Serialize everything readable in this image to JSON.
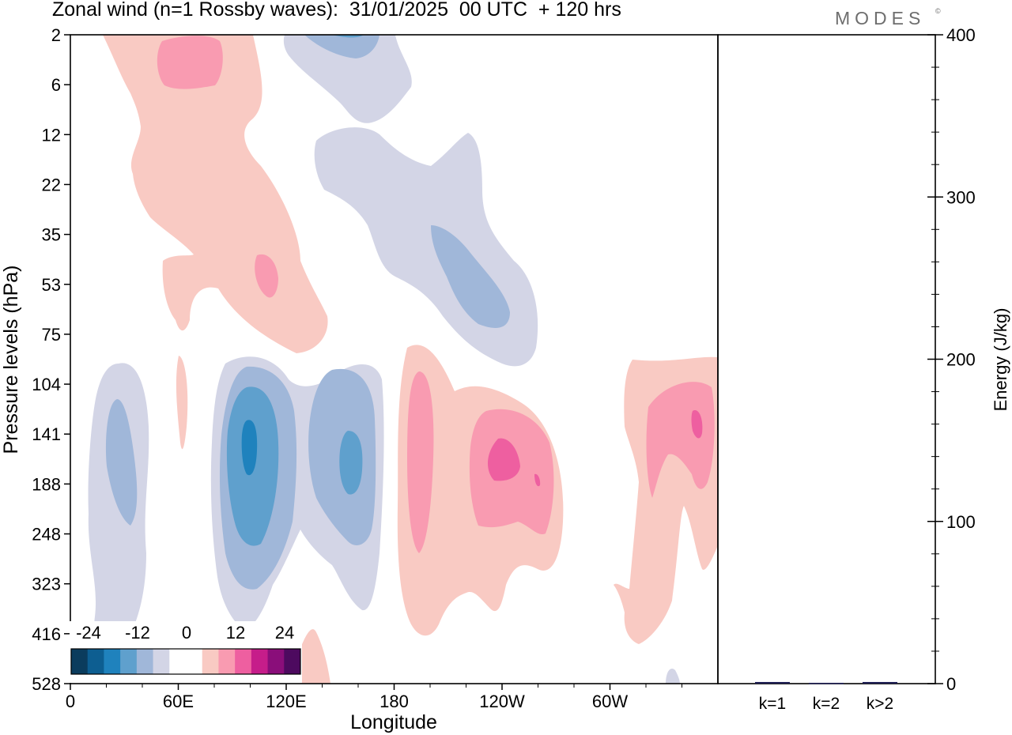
{
  "title": "Zonal wind (n=1 Rossby waves):  31/01/2025  00 UTC  + 120 hrs",
  "logo": {
    "text": "MODES",
    "mark": "©"
  },
  "chart_data": [
    {
      "type": "heatmap",
      "title": "Zonal wind (n=1 Rossby waves):  31/01/2025  00 UTC  + 120 hrs",
      "xlabel": "Longitude",
      "ylabel": "Pressure levels (hPa)",
      "x_ticks": [
        "0",
        "60E",
        "120E",
        "180",
        "120W",
        "60W"
      ],
      "x_range_deg": [
        0,
        360
      ],
      "y_ticks": [
        "2",
        "6",
        "12",
        "22",
        "35",
        "53",
        "75",
        "104",
        "141",
        "188",
        "248",
        "323",
        "416",
        "528"
      ],
      "y_range_hPa": [
        2,
        528
      ],
      "colorbar": {
        "tick_labels": [
          "-24",
          "-12",
          "0",
          "12",
          "24"
        ],
        "colors": [
          "#0b3c5d",
          "#0d5e91",
          "#1f82bd",
          "#5fa0cd",
          "#a0b7d9",
          "#d3d5e6",
          "#ffffff",
          "#ffffff",
          "#f9cac3",
          "#f99bb1",
          "#ee5fa0",
          "#c61d8a",
          "#8a0e7a",
          "#4d0a5f"
        ]
      },
      "features": [
        {
          "sign": "positive",
          "max": 12,
          "longitude_approx": "30E-120E",
          "pressure_approx": "2-75 hPa"
        },
        {
          "sign": "negative",
          "min": -6,
          "longitude_approx": "120E-170W",
          "pressure_approx": "2-104 hPa"
        },
        {
          "sign": "negative",
          "min": -18,
          "longitude_approx": "100E",
          "pressure_approx": "141-248 hPa"
        },
        {
          "sign": "negative",
          "min": -12,
          "longitude_approx": "155E",
          "pressure_approx": "141-188 hPa"
        },
        {
          "sign": "negative",
          "min": -6,
          "longitude_approx": "30E",
          "pressure_approx": "120-416 hPa"
        },
        {
          "sign": "positive",
          "max": 12,
          "longitude_approx": "170W",
          "pressure_approx": "104-248 hPa"
        },
        {
          "sign": "positive",
          "max": 12,
          "longitude_approx": "120W",
          "pressure_approx": "141-188 hPa"
        },
        {
          "sign": "positive",
          "max": 12,
          "longitude_approx": "30W",
          "pressure_approx": "104-248 hPa"
        }
      ]
    },
    {
      "type": "bar",
      "categories": [
        "k=1",
        "k=2",
        "k>2"
      ],
      "values": [
        1,
        0.5,
        1
      ],
      "ylabel": "Energy (J/kg)",
      "ylim": [
        0,
        400
      ],
      "y_ticks": [
        "0",
        "100",
        "200",
        "300",
        "400"
      ],
      "bar_color": "#1a1a50"
    }
  ]
}
